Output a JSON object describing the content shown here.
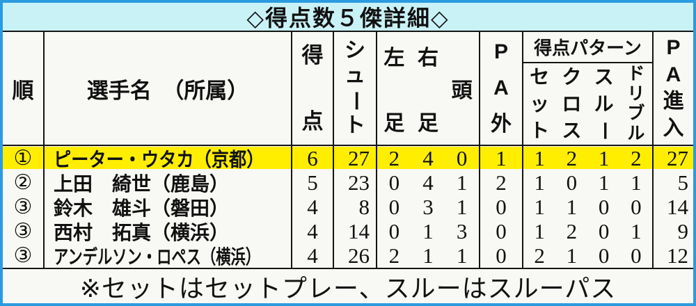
{
  "title": "◇得点数５傑詳細◇",
  "footnote": "※セットはセットプレー、スルーはスルーパス",
  "colors": {
    "frame_blue": "#2b9be0",
    "title_bg": "#c9f2f7",
    "sheet_bg": "#f8f8f4",
    "highlight": "#ffee00"
  },
  "header": {
    "rank": "順",
    "name": "選手名　（所属）",
    "goals": [
      "得",
      "点"
    ],
    "shots": [
      "シ",
      "ュ",
      "ー",
      "ト"
    ],
    "foot_cols": [
      [
        "左",
        "足"
      ],
      [
        "右",
        "足"
      ],
      [
        "頭"
      ]
    ],
    "pa_out": [
      "P",
      "A",
      "外"
    ],
    "pattern_title": "得点パターン",
    "pattern_cols": [
      [
        "セ",
        "ッ",
        "ト"
      ],
      [
        "ク",
        "ロ",
        "ス"
      ],
      [
        "ス",
        "ル",
        "ー"
      ],
      [
        "ド",
        "リ",
        "ブ",
        "ル"
      ]
    ],
    "pa_in": [
      "P",
      "A",
      "進",
      "入"
    ]
  },
  "rows": [
    {
      "rank": "①",
      "name": "ピーター・ウタカ（京都）",
      "goals": "6",
      "shots": "27",
      "left": "2",
      "right": "4",
      "head": "0",
      "pa_out": "1",
      "set": "1",
      "cross": "2",
      "through": "1",
      "dribble": "2",
      "pa_in": "27",
      "highlight": true
    },
    {
      "rank": "②",
      "name": "上田　綺世（鹿島）",
      "goals": "5",
      "shots": "23",
      "left": "0",
      "right": "4",
      "head": "1",
      "pa_out": "2",
      "set": "1",
      "cross": "0",
      "through": "1",
      "dribble": "1",
      "pa_in": "5",
      "highlight": false
    },
    {
      "rank": "③",
      "name": "鈴木　雄斗（磐田）",
      "goals": "4",
      "shots": "8",
      "left": "0",
      "right": "3",
      "head": "1",
      "pa_out": "0",
      "set": "1",
      "cross": "1",
      "through": "0",
      "dribble": "0",
      "pa_in": "14",
      "highlight": false
    },
    {
      "rank": "③",
      "name": "西村　拓真（横浜）",
      "goals": "4",
      "shots": "14",
      "left": "0",
      "right": "1",
      "head": "3",
      "pa_out": "0",
      "set": "1",
      "cross": "2",
      "through": "0",
      "dribble": "1",
      "pa_in": "9",
      "highlight": false
    },
    {
      "rank": "③",
      "name": "アンデルソン・ロペス（横浜）",
      "goals": "4",
      "shots": "26",
      "left": "2",
      "right": "1",
      "head": "1",
      "pa_out": "0",
      "set": "2",
      "cross": "1",
      "through": "0",
      "dribble": "0",
      "pa_in": "12",
      "highlight": false
    }
  ]
}
